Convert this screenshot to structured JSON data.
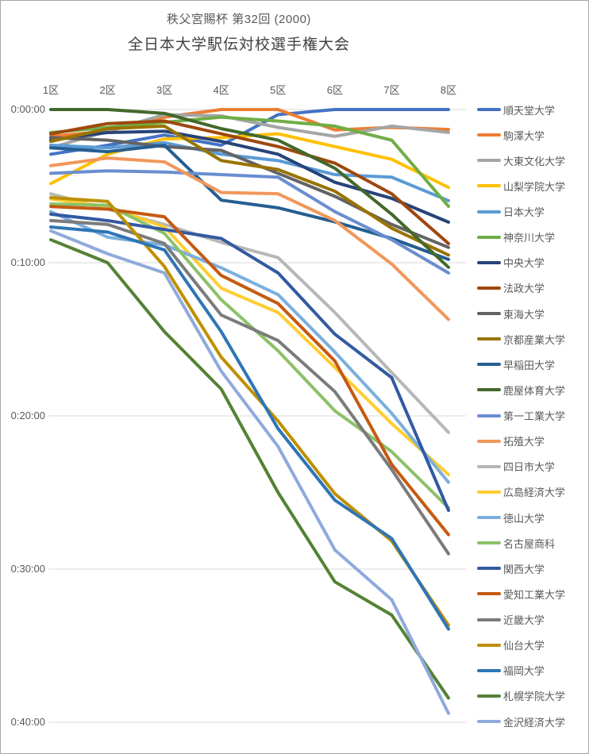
{
  "title": {
    "line1": "秩父宮賜杯 第32回 (2000)",
    "line2": "全日本大学駅伝対校選手権大会"
  },
  "chart_data": {
    "type": "line",
    "description": "Gap behind race leader (h:mm:ss) at each relay-leg exchange, 8 legs, 25 universities; larger gap plotted downward",
    "x_categories": [
      "1区",
      "2区",
      "3区",
      "4区",
      "5区",
      "6区",
      "7区",
      "8区"
    ],
    "y_tick_labels": [
      "0:00:00",
      "0:10:00",
      "0:20:00",
      "0:30:00",
      "0:40:00"
    ],
    "y_axis": {
      "min_seconds": 0,
      "max_seconds": 2400,
      "tick_step_seconds": 600,
      "inverted": true
    },
    "grid": true,
    "legend_position": "right",
    "series": [
      {
        "name": "順天堂大学",
        "color": "#4472C4",
        "gap_mmss": [
          "2:55",
          "2:20",
          "1:40",
          "2:20",
          "0:20",
          "0:00",
          "0:00",
          "0:00"
        ],
        "gap_seconds": [
          175,
          140,
          100,
          140,
          20,
          0,
          0,
          0
        ]
      },
      {
        "name": "駒澤大学",
        "color": "#ED7D31",
        "gap_mmss": [
          "1:45",
          "1:25",
          "0:30",
          "0:00",
          "0:00",
          "1:20",
          "1:10",
          "1:18"
        ],
        "gap_seconds": [
          105,
          85,
          30,
          0,
          0,
          80,
          70,
          78
        ]
      },
      {
        "name": "大東文化大学",
        "color": "#A5A5A5",
        "gap_mmss": [
          "2:30",
          "1:25",
          "0:20",
          "0:25",
          "1:10",
          "1:45",
          "1:05",
          "1:30"
        ],
        "gap_seconds": [
          150,
          85,
          20,
          25,
          70,
          105,
          65,
          90
        ]
      },
      {
        "name": "山梨学院大学",
        "color": "#FFC000",
        "gap_mmss": [
          "4:50",
          "2:55",
          "1:55",
          "1:50",
          "1:35",
          "2:25",
          "3:15",
          "5:05"
        ],
        "gap_seconds": [
          290,
          175,
          115,
          110,
          95,
          145,
          195,
          305
        ]
      },
      {
        "name": "日本大学",
        "color": "#5B9BD5",
        "gap_mmss": [
          "2:20",
          "2:30",
          "2:10",
          "2:55",
          "3:20",
          "4:15",
          "4:25",
          "5:57"
        ],
        "gap_seconds": [
          140,
          150,
          130,
          175,
          200,
          255,
          265,
          357
        ]
      },
      {
        "name": "神奈川大学",
        "color": "#70AD47",
        "gap_mmss": [
          "1:30",
          "1:10",
          "0:50",
          "0:30",
          "0:45",
          "1:05",
          "2:00",
          "6:19"
        ],
        "gap_seconds": [
          90,
          70,
          50,
          30,
          45,
          65,
          120,
          379
        ]
      },
      {
        "name": "中央大学",
        "color": "#264478",
        "gap_mmss": [
          "2:00",
          "1:30",
          "1:25",
          "2:05",
          "2:55",
          "4:45",
          "5:48",
          "7:21"
        ],
        "gap_seconds": [
          120,
          90,
          85,
          125,
          175,
          285,
          348,
          441
        ]
      },
      {
        "name": "法政大学",
        "color": "#9E480E",
        "gap_mmss": [
          "1:35",
          "0:55",
          "0:45",
          "1:35",
          "2:25",
          "3:30",
          "5:30",
          "8:45"
        ],
        "gap_seconds": [
          95,
          55,
          45,
          95,
          145,
          210,
          330,
          525
        ]
      },
      {
        "name": "東海大学",
        "color": "#636363",
        "gap_mmss": [
          "1:50",
          "2:00",
          "2:25",
          "2:40",
          "4:10",
          "5:40",
          "7:30",
          "9:00"
        ],
        "gap_seconds": [
          110,
          120,
          145,
          160,
          250,
          340,
          450,
          540
        ]
      },
      {
        "name": "京都産業大学",
        "color": "#997300",
        "gap_mmss": [
          "2:05",
          "1:15",
          "1:05",
          "3:20",
          "3:55",
          "5:20",
          "7:45",
          "9:30"
        ],
        "gap_seconds": [
          125,
          75,
          65,
          200,
          235,
          320,
          465,
          570
        ]
      },
      {
        "name": "早稲田大学",
        "color": "#255E91",
        "gap_mmss": [
          "2:30",
          "2:45",
          "2:20",
          "5:55",
          "6:25",
          "7:20",
          "8:25",
          "9:47"
        ],
        "gap_seconds": [
          150,
          165,
          140,
          355,
          385,
          440,
          505,
          587
        ]
      },
      {
        "name": "鹿屋体育大学",
        "color": "#43682B",
        "gap_mmss": [
          "0:00",
          "0:00",
          "0:15",
          "1:15",
          "2:00",
          "3:50",
          "6:50",
          "10:18"
        ],
        "gap_seconds": [
          0,
          0,
          15,
          75,
          120,
          230,
          410,
          618
        ]
      },
      {
        "name": "第一工業大学",
        "color": "#698ED0",
        "gap_mmss": [
          "4:10",
          "4:00",
          "4:05",
          "4:15",
          "4:25",
          "6:40",
          "8:30",
          "10:40"
        ],
        "gap_seconds": [
          250,
          240,
          245,
          255,
          265,
          400,
          510,
          640
        ]
      },
      {
        "name": "拓殖大学",
        "color": "#F1975A",
        "gap_mmss": [
          "3:40",
          "3:10",
          "3:25",
          "5:25",
          "5:30",
          "7:15",
          "10:05",
          "13:42"
        ],
        "gap_seconds": [
          220,
          190,
          205,
          325,
          330,
          435,
          605,
          822
        ]
      },
      {
        "name": "四日市大学",
        "color": "#B7B7B7",
        "gap_mmss": [
          "5:30",
          "6:30",
          "7:30",
          "8:40",
          "9:40",
          "13:15",
          "17:10",
          "21:05"
        ],
        "gap_seconds": [
          330,
          390,
          450,
          520,
          580,
          795,
          1030,
          1265
        ]
      },
      {
        "name": "広島経済大学",
        "color": "#FFCD33",
        "gap_mmss": [
          "5:50",
          "6:20",
          "7:40",
          "11:40",
          "13:15",
          "16:50",
          "20:30",
          "23:50"
        ],
        "gap_seconds": [
          350,
          380,
          460,
          700,
          795,
          1010,
          1230,
          1430
        ]
      },
      {
        "name": "徳山大学",
        "color": "#7CAFDD",
        "gap_mmss": [
          "6:40",
          "8:20",
          "8:50",
          "10:20",
          "12:05",
          "15:50",
          "19:50",
          "24:20"
        ],
        "gap_seconds": [
          400,
          500,
          530,
          620,
          725,
          950,
          1190,
          1460
        ]
      },
      {
        "name": "名古屋商科",
        "color": "#8CC168",
        "gap_mmss": [
          "6:10",
          "6:15",
          "8:05",
          "12:25",
          "15:45",
          "19:40",
          "22:20",
          "26:00"
        ],
        "gap_seconds": [
          370,
          375,
          485,
          745,
          945,
          1180,
          1340,
          1560
        ]
      },
      {
        "name": "関西大学",
        "color": "#335AA1",
        "gap_mmss": [
          "6:50",
          "7:15",
          "7:50",
          "8:25",
          "10:40",
          "14:40",
          "17:30",
          "26:10"
        ],
        "gap_seconds": [
          410,
          435,
          470,
          505,
          640,
          880,
          1050,
          1570
        ]
      },
      {
        "name": "愛知工業大学",
        "color": "#C55A11",
        "gap_mmss": [
          "6:20",
          "6:30",
          "7:00",
          "10:50",
          "12:40",
          "16:25",
          "23:10",
          "27:45"
        ],
        "gap_seconds": [
          380,
          390,
          420,
          650,
          760,
          985,
          1390,
          1665
        ]
      },
      {
        "name": "近畿大学",
        "color": "#7B7B7B",
        "gap_mmss": [
          "7:15",
          "7:30",
          "8:45",
          "13:25",
          "15:05",
          "18:25",
          "23:30",
          "29:00"
        ],
        "gap_seconds": [
          435,
          450,
          525,
          805,
          905,
          1105,
          1410,
          1740
        ]
      },
      {
        "name": "仙台大学",
        "color": "#BF9000",
        "gap_mmss": [
          "5:45",
          "6:00",
          "10:15",
          "16:10",
          "20:20",
          "25:05",
          "28:10",
          "33:40"
        ],
        "gap_seconds": [
          345,
          360,
          615,
          970,
          1220,
          1505,
          1690,
          2020
        ]
      },
      {
        "name": "福岡大学",
        "color": "#2E75B6",
        "gap_mmss": [
          "7:40",
          "8:00",
          "9:10",
          "14:30",
          "20:50",
          "25:30",
          "28:00",
          "33:55"
        ],
        "gap_seconds": [
          460,
          480,
          550,
          870,
          1250,
          1530,
          1680,
          2035
        ]
      },
      {
        "name": "札幌学院大学",
        "color": "#548235",
        "gap_mmss": [
          "8:30",
          "10:00",
          "14:30",
          "18:15",
          "25:00",
          "30:50",
          "33:00",
          "38:25"
        ],
        "gap_seconds": [
          510,
          600,
          870,
          1095,
          1500,
          1850,
          1980,
          2305
        ]
      },
      {
        "name": "金沢経済大学",
        "color": "#8FAADC",
        "gap_mmss": [
          "7:55",
          "9:25",
          "10:40",
          "17:05",
          "22:00",
          "28:45",
          "32:00",
          "39:25"
        ],
        "gap_seconds": [
          475,
          565,
          640,
          1025,
          1320,
          1725,
          1920,
          2365
        ]
      }
    ]
  },
  "layout_colors": {
    "grid_line": "#D9D9D9",
    "axis_text": "#595959",
    "title_text": "#404040",
    "frame_border": "#A6A6A6"
  }
}
